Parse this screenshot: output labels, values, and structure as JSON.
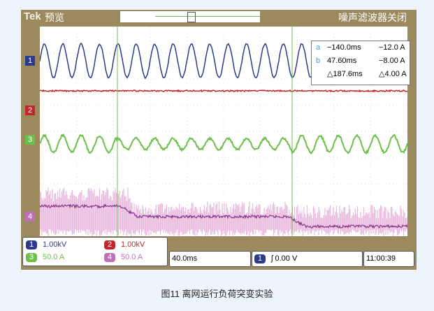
{
  "header": {
    "brand": "Tek",
    "mode": "预览",
    "noise_filter": "噪声滤波器关闭"
  },
  "channels": [
    {
      "id": "1",
      "scale": "1.00kV",
      "color": "#2d3a8c"
    },
    {
      "id": "2",
      "scale": "1.00kV",
      "color": "#c0282a"
    },
    {
      "id": "3",
      "scale": "50.0 A",
      "color": "#6cc04a"
    },
    {
      "id": "4",
      "scale": "50.0 A",
      "color": "#c070b8"
    }
  ],
  "cursors": {
    "a_time": "−140.0ms",
    "a_value": "−12.0 A",
    "b_time": "47.60ms",
    "b_value": "−8.00 A",
    "delta_time": "△187.6ms",
    "delta_value": "△4.00 A",
    "a_label": "a",
    "b_label": "b"
  },
  "timebase": "40.0ms",
  "trigger": {
    "channel": "1",
    "level": "ʃ 0.00 V"
  },
  "clock": "11:00:39",
  "caption": "图11  离网运行负荷突变实验"
}
